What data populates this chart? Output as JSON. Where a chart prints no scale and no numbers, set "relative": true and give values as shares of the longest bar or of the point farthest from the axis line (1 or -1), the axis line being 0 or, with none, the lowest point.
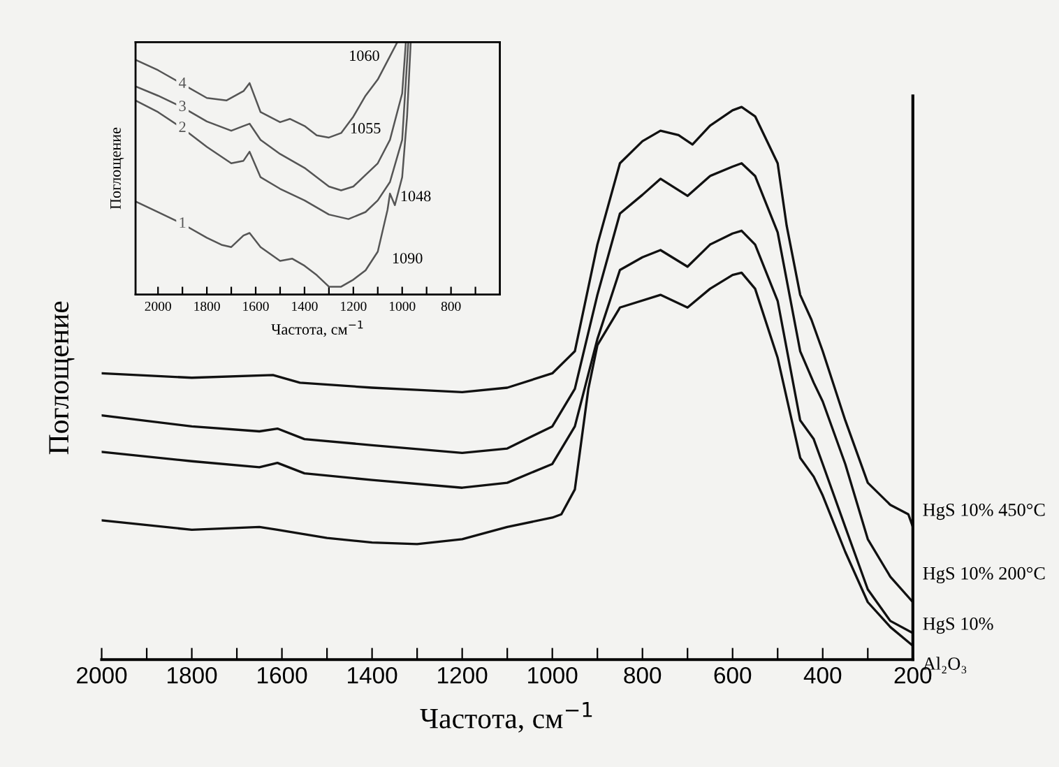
{
  "chart_data": [
    {
      "type": "line",
      "xlabel": "Частота, см$^{−1}$",
      "ylabel": "Поглощение",
      "relative": true,
      "tick_labels": "x",
      "grid": false,
      "xlim": [
        2000,
        200
      ],
      "xticks": [
        2000,
        {
          "value": 1900,
          "label": null
        },
        1800,
        {
          "value": 1700,
          "label": null
        },
        1600,
        {
          "value": 1500,
          "label": null
        },
        1400,
        {
          "value": 1300,
          "label": null
        },
        1200,
        {
          "value": 1100,
          "label": null
        },
        1000,
        {
          "value": 900,
          "label": null
        },
        800,
        {
          "value": 700,
          "label": null
        },
        600,
        {
          "value": 500,
          "label": null
        },
        400,
        {
          "value": 300,
          "label": null
        },
        200
      ],
      "series": [
        {
          "name": "HgS 10% 450°C",
          "color": "#111111",
          "x": [
            2000,
            1800,
            1620,
            1560,
            1400,
            1300,
            1200,
            1100,
            1000,
            950,
            900,
            850,
            800,
            760,
            720,
            689,
            650,
            600,
            580,
            550,
            500,
            480,
            450,
            425,
            400,
            350,
            300,
            250,
            210,
            200
          ],
          "values": [
            0.518,
            0.51,
            0.515,
            0.501,
            0.492,
            0.488,
            0.484,
            0.492,
            0.518,
            0.558,
            0.751,
            0.898,
            0.938,
            0.957,
            0.949,
            0.932,
            0.966,
            0.994,
            1.0,
            0.983,
            0.898,
            0.785,
            0.66,
            0.615,
            0.558,
            0.433,
            0.32,
            0.28,
            0.263,
            0.24
          ]
        },
        {
          "name": "HgS 10% 200°C",
          "color": "#111111",
          "x": [
            2000,
            1800,
            1650,
            1610,
            1550,
            1400,
            1200,
            1100,
            1000,
            950,
            900,
            850,
            800,
            760,
            700,
            650,
            600,
            580,
            550,
            500,
            450,
            420,
            400,
            350,
            300,
            250,
            200
          ],
          "values": [
            0.442,
            0.422,
            0.413,
            0.418,
            0.399,
            0.388,
            0.374,
            0.382,
            0.422,
            0.49,
            0.66,
            0.807,
            0.841,
            0.87,
            0.839,
            0.875,
            0.892,
            0.898,
            0.875,
            0.773,
            0.558,
            0.501,
            0.467,
            0.354,
            0.218,
            0.15,
            0.104
          ]
        },
        {
          "name": "HgS 10%",
          "color": "#111111",
          "x": [
            2000,
            1800,
            1650,
            1610,
            1550,
            1400,
            1200,
            1100,
            1000,
            950,
            900,
            850,
            800,
            760,
            700,
            650,
            600,
            580,
            550,
            500,
            450,
            420,
            400,
            350,
            300,
            250,
            200
          ],
          "values": [
            0.376,
            0.359,
            0.348,
            0.356,
            0.337,
            0.325,
            0.311,
            0.32,
            0.354,
            0.422,
            0.58,
            0.705,
            0.728,
            0.741,
            0.711,
            0.751,
            0.771,
            0.776,
            0.751,
            0.649,
            0.433,
            0.399,
            0.354,
            0.24,
            0.127,
            0.07,
            0.048
          ]
        },
        {
          "name": "Al₂O₃",
          "color": "#111111",
          "x": [
            2000,
            1800,
            1650,
            1610,
            1500,
            1400,
            1300,
            1200,
            1100,
            1000,
            980,
            950,
            920,
            900,
            850,
            760,
            700,
            650,
            600,
            580,
            550,
            500,
            450,
            420,
            400,
            350,
            300,
            250,
            200
          ],
          "values": [
            0.252,
            0.235,
            0.24,
            0.235,
            0.22,
            0.212,
            0.209,
            0.218,
            0.24,
            0.257,
            0.263,
            0.308,
            0.49,
            0.569,
            0.637,
            0.66,
            0.637,
            0.671,
            0.696,
            0.7,
            0.671,
            0.546,
            0.365,
            0.331,
            0.297,
            0.195,
            0.104,
            0.059,
            0.025
          ]
        }
      ]
    },
    {
      "type": "line",
      "xlabel": "Частота, см$^{−1}$",
      "ylabel": "Поглощение",
      "relative": true,
      "tick_labels": "x",
      "grid": false,
      "xlim": [
        2092,
        600
      ],
      "xticks": [
        2000,
        {
          "value": 1900,
          "label": null
        },
        1800,
        {
          "value": 1700,
          "label": null
        },
        1600,
        {
          "value": 1500,
          "label": null
        },
        1400,
        {
          "value": 1300,
          "label": null
        },
        1200,
        {
          "value": 1100,
          "label": null
        },
        1000,
        {
          "value": 900,
          "label": null
        },
        800,
        {
          "value": 700,
          "label": null
        }
      ],
      "series": [
        {
          "name": "4",
          "color": "#555555",
          "x": [
            2092,
            2000,
            1900,
            1800,
            1720,
            1650,
            1625,
            1580,
            1500,
            1460,
            1400,
            1350,
            1300,
            1250,
            1200,
            1150,
            1100,
            1060,
            1020
          ],
          "values": [
            0.93,
            0.889,
            0.834,
            0.779,
            0.769,
            0.806,
            0.838,
            0.723,
            0.683,
            0.696,
            0.668,
            0.631,
            0.622,
            0.64,
            0.705,
            0.788,
            0.852,
            0.926,
            1.0
          ]
        },
        {
          "name": "3",
          "color": "#555555",
          "x": [
            2092,
            2000,
            1900,
            1800,
            1700,
            1650,
            1625,
            1580,
            1500,
            1400,
            1300,
            1250,
            1200,
            1100,
            1050,
            1000,
            985
          ],
          "values": [
            0.825,
            0.788,
            0.742,
            0.686,
            0.649,
            0.668,
            0.677,
            0.613,
            0.557,
            0.502,
            0.428,
            0.413,
            0.428,
            0.52,
            0.613,
            0.797,
            1.0
          ]
        },
        {
          "name": "2",
          "color": "#555555",
          "x": [
            2092,
            2000,
            1900,
            1800,
            1700,
            1650,
            1625,
            1580,
            1500,
            1400,
            1300,
            1220,
            1150,
            1100,
            1050,
            1000,
            975
          ],
          "values": [
            0.769,
            0.723,
            0.659,
            0.585,
            0.52,
            0.53,
            0.566,
            0.465,
            0.419,
            0.373,
            0.317,
            0.299,
            0.327,
            0.373,
            0.446,
            0.613,
            1.0
          ]
        },
        {
          "name": "1",
          "color": "#555555",
          "x": [
            2092,
            2000,
            1900,
            1800,
            1740,
            1700,
            1650,
            1625,
            1580,
            1500,
            1450,
            1400,
            1350,
            1300,
            1250,
            1200,
            1150,
            1100,
            1060,
            1050,
            1030,
            1000,
            980,
            965
          ],
          "values": [
            0.369,
            0.327,
            0.28,
            0.225,
            0.197,
            0.188,
            0.234,
            0.244,
            0.188,
            0.133,
            0.142,
            0.114,
            0.077,
            0.031,
            0.031,
            0.059,
            0.096,
            0.17,
            0.336,
            0.4,
            0.354,
            0.465,
            0.705,
            1.0
          ]
        }
      ],
      "annotations": [
        {
          "text": "1060",
          "x": 1060,
          "y": 0.926
        },
        {
          "text": "1055",
          "x": 1055,
          "y": 0.6
        },
        {
          "text": "1048",
          "x": 1048,
          "y": 0.4
        },
        {
          "text": "1090",
          "x": 1090,
          "y": 0.2
        }
      ]
    }
  ]
}
